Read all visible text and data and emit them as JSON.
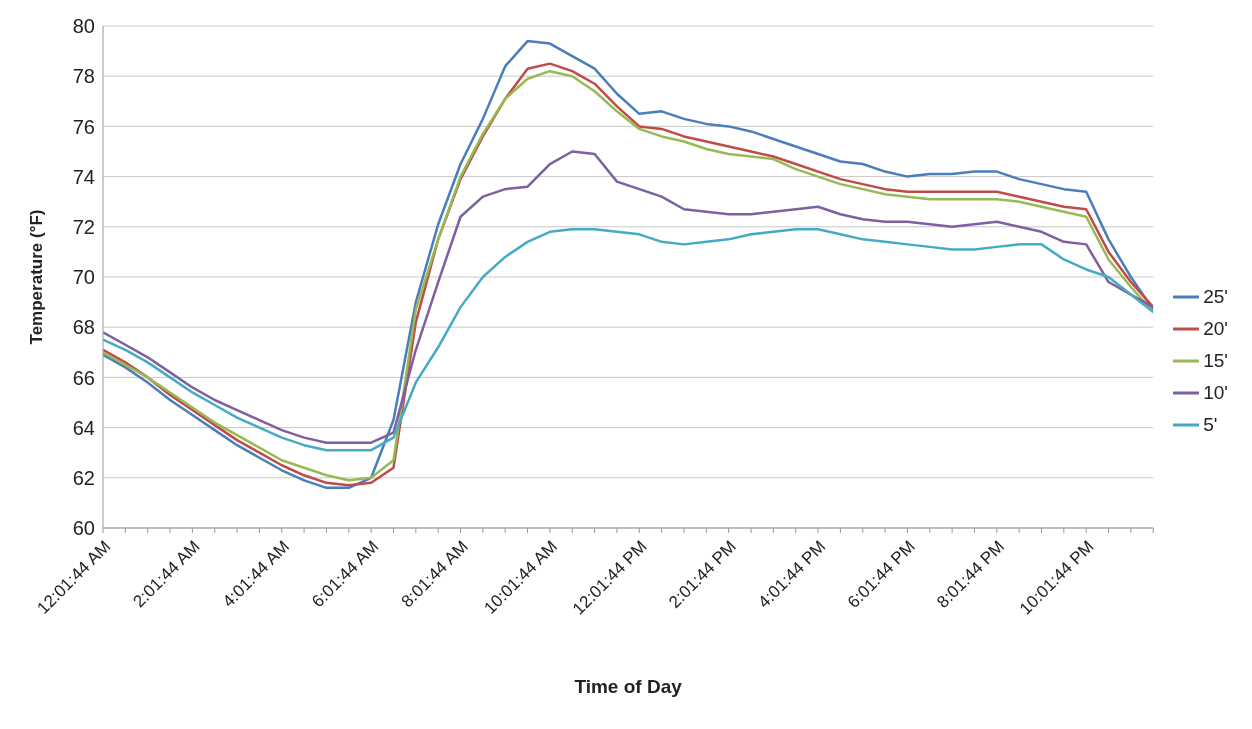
{
  "chart_data": {
    "type": "line",
    "xlabel": "Time of Day",
    "ylabel": "Temperature (°F)",
    "categories": [
      "12:01:44 AM",
      null,
      null,
      null,
      "2:01:44 AM",
      null,
      null,
      null,
      "4:01:44 AM",
      null,
      null,
      null,
      "6:01:44 AM",
      null,
      null,
      null,
      "8:01:44 AM",
      null,
      null,
      null,
      "10:01:44 AM",
      null,
      null,
      null,
      "12:01:44 PM",
      null,
      null,
      null,
      "2:01:44 PM",
      null,
      null,
      null,
      "4:01:44 PM",
      null,
      null,
      null,
      "6:01:44 PM",
      null,
      null,
      null,
      "8:01:44 PM",
      null,
      null,
      null,
      "10:01:44 PM",
      null,
      null,
      null
    ],
    "series": [
      {
        "name": "25'",
        "color": "#4a7ebb",
        "values": [
          66.9,
          66.4,
          65.8,
          65.1,
          64.5,
          63.9,
          63.3,
          62.8,
          62.3,
          61.9,
          61.6,
          61.6,
          62.0,
          64.3,
          69.0,
          72.1,
          74.5,
          76.3,
          78.4,
          79.4,
          79.3,
          78.8,
          78.3,
          77.3,
          76.5,
          76.6,
          76.3,
          76.1,
          76.0,
          75.8,
          75.5,
          75.2,
          74.9,
          74.6,
          74.5,
          74.2,
          74.0,
          74.1,
          74.1,
          74.2,
          74.2,
          73.9,
          73.7,
          73.5,
          73.4,
          71.5,
          70.0,
          68.7
        ]
      },
      {
        "name": "20'",
        "color": "#be4b48",
        "values": [
          67.1,
          66.6,
          66.0,
          65.3,
          64.7,
          64.1,
          63.5,
          63.0,
          62.5,
          62.1,
          61.8,
          61.7,
          61.8,
          62.4,
          68.2,
          71.5,
          73.9,
          75.6,
          77.1,
          78.3,
          78.5,
          78.2,
          77.7,
          76.8,
          76.0,
          75.9,
          75.6,
          75.4,
          75.2,
          75.0,
          74.8,
          74.5,
          74.2,
          73.9,
          73.7,
          73.5,
          73.4,
          73.4,
          73.4,
          73.4,
          73.4,
          73.2,
          73.0,
          72.8,
          72.7,
          71.0,
          69.8,
          68.8
        ]
      },
      {
        "name": "15'",
        "color": "#98b954",
        "values": [
          67.0,
          66.5,
          66.0,
          65.4,
          64.8,
          64.2,
          63.7,
          63.2,
          62.7,
          62.4,
          62.1,
          61.9,
          62.0,
          62.7,
          68.7,
          71.5,
          74.0,
          75.7,
          77.1,
          77.9,
          78.2,
          78.0,
          77.4,
          76.6,
          75.9,
          75.6,
          75.4,
          75.1,
          74.9,
          74.8,
          74.7,
          74.3,
          74.0,
          73.7,
          73.5,
          73.3,
          73.2,
          73.1,
          73.1,
          73.1,
          73.1,
          73.0,
          72.8,
          72.6,
          72.4,
          70.7,
          69.6,
          68.6
        ]
      },
      {
        "name": "10'",
        "color": "#7d60a0",
        "values": [
          67.8,
          67.3,
          66.8,
          66.2,
          65.6,
          65.1,
          64.7,
          64.3,
          63.9,
          63.6,
          63.4,
          63.4,
          63.4,
          63.8,
          67.1,
          69.8,
          72.4,
          73.2,
          73.5,
          73.6,
          74.5,
          75.0,
          74.9,
          73.8,
          73.5,
          73.2,
          72.7,
          72.6,
          72.5,
          72.5,
          72.6,
          72.7,
          72.8,
          72.5,
          72.3,
          72.2,
          72.2,
          72.1,
          72.0,
          72.1,
          72.2,
          72.0,
          71.8,
          71.4,
          71.3,
          69.8,
          69.3,
          68.8
        ]
      },
      {
        "name": "5'",
        "color": "#46aac5",
        "values": [
          67.5,
          67.1,
          66.6,
          66.0,
          65.4,
          64.9,
          64.4,
          64.0,
          63.6,
          63.3,
          63.1,
          63.1,
          63.1,
          63.6,
          65.8,
          67.2,
          68.8,
          70.0,
          70.8,
          71.4,
          71.8,
          71.9,
          71.9,
          71.8,
          71.7,
          71.4,
          71.3,
          71.4,
          71.5,
          71.7,
          71.8,
          71.9,
          71.9,
          71.7,
          71.5,
          71.4,
          71.3,
          71.2,
          71.1,
          71.1,
          71.2,
          71.3,
          71.3,
          70.7,
          70.3,
          70.0,
          69.3,
          68.6
        ]
      }
    ],
    "ylim": [
      60,
      80
    ],
    "yticks": [
      60,
      62,
      64,
      66,
      68,
      70,
      72,
      74,
      76,
      78,
      80
    ],
    "grid": "y",
    "legend": "right",
    "marker": "none",
    "line_style": "solid"
  }
}
